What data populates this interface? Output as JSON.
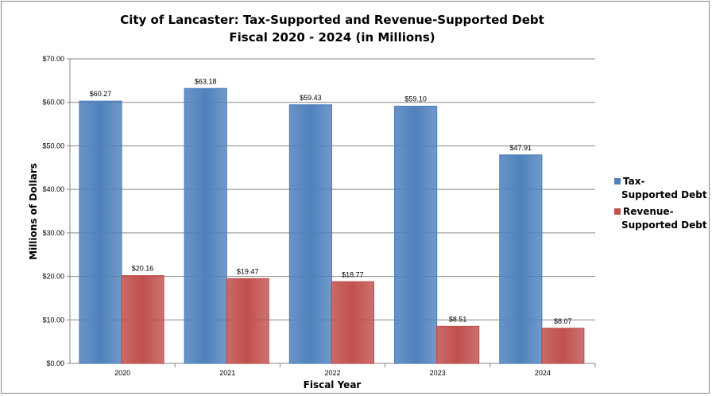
{
  "chart_data": {
    "type": "bar",
    "title": "City of Lancaster: Tax-Supported and Revenue-Supported Debt",
    "subtitle": "Fiscal 2020 - 2024 (in Millions)",
    "xlabel": "Fiscal Year",
    "ylabel": "Millions of Dollars",
    "categories": [
      "2020",
      "2021",
      "2022",
      "2023",
      "2024"
    ],
    "series": [
      {
        "name": "Tax-Supported Debt",
        "legend_lines": [
          "Tax-",
          "Supported Debt"
        ],
        "color": "#4F81BD",
        "values": [
          60.27,
          63.18,
          59.43,
          59.1,
          47.91
        ],
        "labels": [
          "$60.27",
          "$63.18",
          "$59.43",
          "$59.10",
          "$47.91"
        ]
      },
      {
        "name": "Revenue-Supported Debt",
        "legend_lines": [
          "Revenue-",
          "Supported Debt"
        ],
        "color": "#C0504D",
        "values": [
          20.16,
          19.47,
          18.77,
          8.51,
          8.07
        ],
        "labels": [
          "$20.16",
          "$19.47",
          "$18.77",
          "$8.51",
          "$8.07"
        ]
      }
    ],
    "ylim": [
      0,
      70
    ],
    "yticks": [
      "$0.00",
      "$10.00",
      "$20.00",
      "$30.00",
      "$40.00",
      "$50.00",
      "$60.00",
      "$70.00"
    ],
    "grid": true,
    "legend": "right"
  }
}
